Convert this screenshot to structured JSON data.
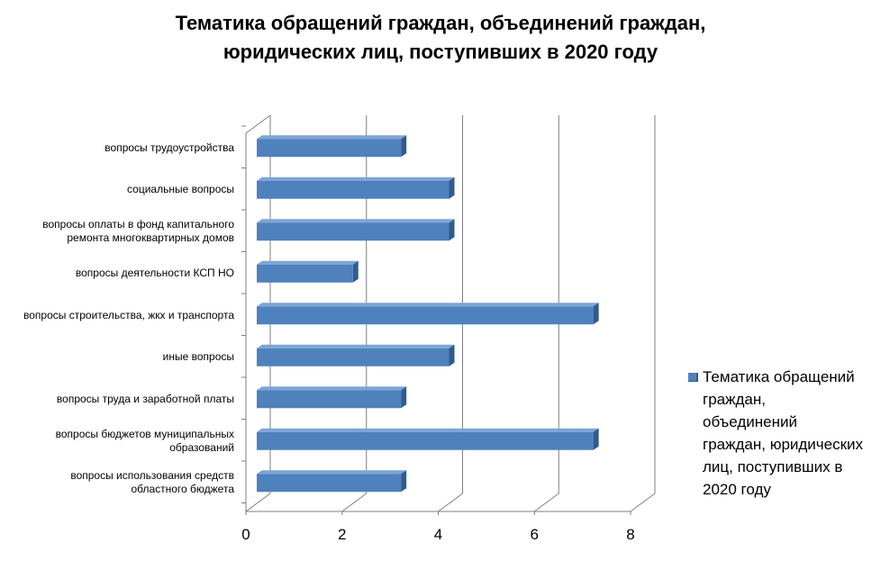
{
  "chart_data": {
    "type": "bar",
    "orientation": "horizontal",
    "title": "Тематика обращений граждан, объединений граждан, юридических лиц, поступивших в 2020 году",
    "title_lines": [
      "Тематика обращений граждан, объединений граждан,",
      "юридических лиц, поступивших в 2020 году"
    ],
    "categories": [
      [
        "вопросы трудоустройства"
      ],
      [
        "социальные вопросы"
      ],
      [
        "вопросы оплаты в фонд капитального",
        "ремонта многоквартирных домов"
      ],
      [
        "вопросы деятельности КСП НО"
      ],
      [
        "вопросы строительства, жкх и транспорта"
      ],
      [
        "иные вопросы"
      ],
      [
        "вопросы труда и заработной платы"
      ],
      [
        "вопросы бюджетов муниципальных",
        "образований"
      ],
      [
        "вопросы использования средств",
        "областного бюджета"
      ]
    ],
    "series": [
      {
        "name": "Тематика обращений граждан, объединений граждан, юридических лиц, поступивших в 2020 году",
        "values": [
          3,
          4,
          4,
          2,
          7,
          4,
          3,
          7,
          3
        ]
      }
    ],
    "xlim": [
      0,
      8
    ],
    "xticks": [
      "0",
      "2",
      "4",
      "6",
      "8"
    ],
    "grid": true,
    "legend_position": "right",
    "legend_lines": [
      "Тематика обращений",
      "граждан,",
      "объединений",
      "граждан, юридических",
      "лиц, поступивших в",
      "2020 году"
    ],
    "colors": {
      "bar_front": "#4f81bd",
      "bar_top": "#7ea5d6",
      "bar_side": "#2f5b8f",
      "grid": "#7f7f7f"
    }
  }
}
